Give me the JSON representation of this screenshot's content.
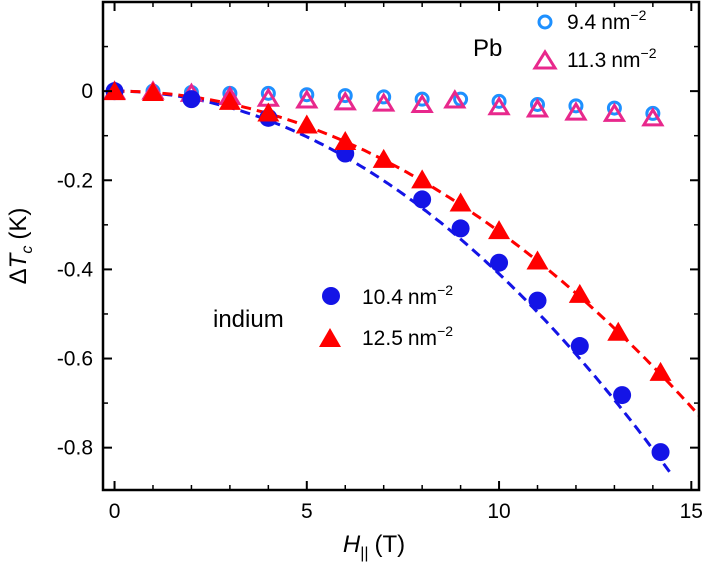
{
  "chart_data": {
    "type": "scatter",
    "title": "",
    "xlabel": {
      "main": "H",
      "sub": "||",
      "unit": "(T)"
    },
    "ylabel": {
      "delta": "Δ",
      "main": "T",
      "sub": "c",
      "unit": "(K)"
    },
    "xlim": [
      -0.3,
      15.2
    ],
    "ylim": [
      -0.895,
      0.2
    ],
    "xticks": [
      0,
      5,
      10,
      15
    ],
    "xtick_labels": [
      "0",
      "5",
      "10",
      "15"
    ],
    "yticks": [
      0,
      -0.2,
      -0.4,
      -0.6,
      -0.8
    ],
    "ytick_labels": [
      "0",
      "-0.2",
      "-0.4",
      "-0.6",
      "-0.8"
    ],
    "group_labels": {
      "pb": "Pb",
      "indium": "indium"
    },
    "legend": {
      "pb": [
        {
          "value": "9.4",
          "unit": "nm",
          "exp": "−2"
        },
        {
          "value": "11.3",
          "unit": "nm",
          "exp": "−2"
        }
      ],
      "indium": [
        {
          "value": "10.4",
          "unit": "nm",
          "exp": "−2"
        },
        {
          "value": "12.5",
          "unit": "nm",
          "exp": "−2"
        }
      ]
    },
    "series": [
      {
        "name": "Pb 9.4 nm-2",
        "marker": "circle-open",
        "color": "#1e90ff",
        "x": [
          0,
          1,
          2,
          3,
          4,
          5,
          6,
          7,
          8,
          9,
          10,
          11,
          12,
          13,
          14
        ],
        "y": [
          0.0,
          0.0,
          -0.003,
          -0.005,
          -0.005,
          -0.008,
          -0.01,
          -0.013,
          -0.018,
          -0.018,
          -0.023,
          -0.03,
          -0.033,
          -0.038,
          -0.05
        ]
      },
      {
        "name": "Pb 11.3 nm-2",
        "marker": "triangle-open",
        "color": "#e8288c",
        "x": [
          0,
          1,
          2,
          3,
          4,
          5,
          6,
          7,
          8,
          8.85,
          10,
          11,
          12,
          13,
          14
        ],
        "y": [
          0.0,
          0.0,
          -0.005,
          -0.012,
          -0.016,
          -0.02,
          -0.024,
          -0.027,
          -0.03,
          -0.02,
          -0.035,
          -0.04,
          -0.047,
          -0.05,
          -0.06
        ]
      },
      {
        "name": "indium 10.4 nm-2",
        "marker": "circle-filled",
        "color": "#1414e6",
        "x": [
          0,
          2,
          4,
          6,
          8,
          9,
          10,
          11,
          12.1,
          13.2,
          14.2
        ],
        "y": [
          0.0,
          -0.018,
          -0.06,
          -0.14,
          -0.243,
          -0.308,
          -0.385,
          -0.47,
          -0.572,
          -0.682,
          -0.81
        ],
        "fit": {
          "coef": -0.0041,
          "xmax": 14.5
        }
      },
      {
        "name": "indium 12.5 nm-2",
        "marker": "triangle-filled",
        "color": "#ff0000",
        "x": [
          0,
          1,
          3,
          4,
          5,
          6,
          7,
          8,
          9,
          10,
          11,
          12.1,
          13.1,
          14.2
        ],
        "y": [
          0.0,
          -0.002,
          -0.022,
          -0.048,
          -0.075,
          -0.112,
          -0.152,
          -0.198,
          -0.25,
          -0.312,
          -0.38,
          -0.455,
          -0.54,
          -0.63
        ],
        "fit": {
          "coef": -0.00315,
          "xmax": 15.2
        }
      }
    ]
  }
}
